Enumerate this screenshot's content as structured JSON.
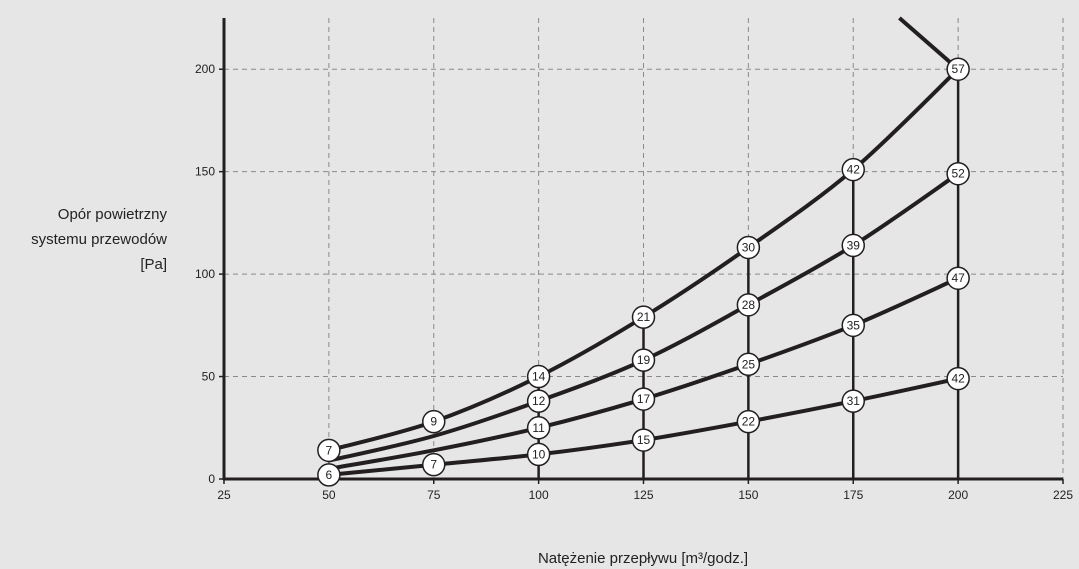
{
  "chart_data": {
    "type": "line",
    "title": "",
    "xlabel": "Natężenie przepływu [m³/godz.]",
    "ylabel_lines": [
      "Opór powietrzny",
      "systemu przewodów",
      "[Pa]"
    ],
    "xlim": [
      25,
      225
    ],
    "ylim": [
      0,
      225
    ],
    "x_ticks": [
      25,
      50,
      75,
      100,
      125,
      150,
      175,
      200,
      225
    ],
    "y_ticks": [
      0,
      50,
      100,
      150,
      200
    ],
    "grid": true,
    "colors": {
      "background": "#e6e6e7",
      "line": "#231f20",
      "grid": "#8a8a8a",
      "marker_fill": "#ffffff"
    },
    "series": [
      {
        "points": [
          [
            50,
            14
          ],
          [
            75,
            28
          ],
          [
            100,
            50
          ],
          [
            125,
            79
          ],
          [
            150,
            113
          ],
          [
            175,
            151
          ],
          [
            200,
            200
          ]
        ],
        "markers": [
          "7",
          "9",
          "14",
          "21",
          "30",
          "42",
          "57"
        ],
        "extension": [
          [
            186,
            225
          ],
          [
            200,
            200
          ]
        ]
      },
      {
        "points": [
          [
            50,
            9
          ],
          [
            75,
            21
          ],
          [
            100,
            38
          ],
          [
            125,
            58
          ],
          [
            150,
            85
          ],
          [
            175,
            114
          ],
          [
            200,
            149
          ]
        ],
        "markers": [
          "",
          "",
          "12",
          "19",
          "28",
          "39",
          "52"
        ]
      },
      {
        "points": [
          [
            50,
            5
          ],
          [
            75,
            14
          ],
          [
            100,
            25
          ],
          [
            125,
            39
          ],
          [
            150,
            56
          ],
          [
            175,
            75
          ],
          [
            200,
            98
          ]
        ],
        "markers": [
          "",
          "",
          "11",
          "17",
          "25",
          "35",
          "47"
        ]
      },
      {
        "points": [
          [
            50,
            2
          ],
          [
            75,
            7
          ],
          [
            100,
            12
          ],
          [
            125,
            19
          ],
          [
            150,
            28
          ],
          [
            175,
            38
          ],
          [
            200,
            49
          ]
        ],
        "markers": [
          "6",
          "7",
          "10",
          "15",
          "22",
          "31",
          "42"
        ]
      }
    ],
    "vertical_lines": [
      {
        "x": 100,
        "from": 0,
        "to": 50
      },
      {
        "x": 125,
        "from": 0,
        "to": 79
      },
      {
        "x": 150,
        "from": 0,
        "to": 113
      },
      {
        "x": 175,
        "from": 0,
        "to": 151
      },
      {
        "x": 200,
        "from": 0,
        "to": 200
      }
    ]
  }
}
